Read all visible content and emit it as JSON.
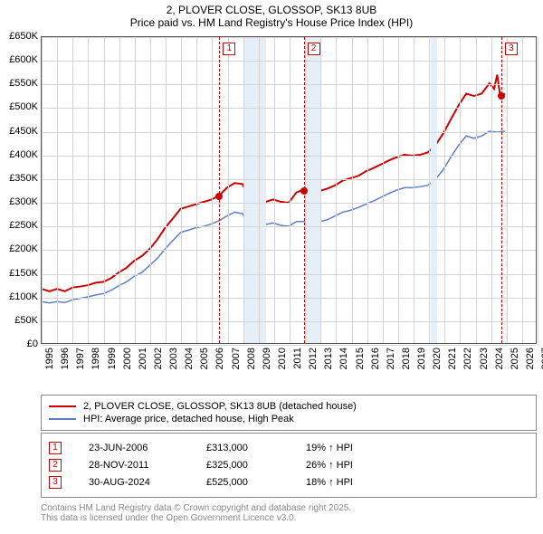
{
  "title_line1": "2, PLOVER CLOSE, GLOSSOP, SK13 8UB",
  "title_line2": "Price paid vs. HM Land Registry's House Price Index (HPI)",
  "chart": {
    "type": "line",
    "xlim": [
      1995,
      2027
    ],
    "ylim": [
      0,
      650000
    ],
    "ytick_step": 50000,
    "ytick_prefix": "£",
    "ytick_suffix": "K",
    "xtick_step": 1,
    "grid_color": "#d3d3d3",
    "minor_grid_color": "#f0f0f0",
    "shaded_recessions": [
      {
        "start": 2008.0,
        "end": 2009.5,
        "color": "#e6eef7"
      },
      {
        "start": 2012.0,
        "end": 2013.0,
        "color": "#e6eef7"
      },
      {
        "start": 2020.1,
        "end": 2020.5,
        "color": "#e6eef7"
      }
    ],
    "series": [
      {
        "name": "2, PLOVER CLOSE, GLOSSOP, SK13 8UB (detached house)",
        "color": "#cc0000",
        "width": 2,
        "data": [
          [
            1995.0,
            115000
          ],
          [
            1995.5,
            110000
          ],
          [
            1996.0,
            115000
          ],
          [
            1996.5,
            110000
          ],
          [
            1997.0,
            118000
          ],
          [
            1997.5,
            120000
          ],
          [
            1998.0,
            123000
          ],
          [
            1998.5,
            128000
          ],
          [
            1999.0,
            130000
          ],
          [
            1999.5,
            138000
          ],
          [
            2000.0,
            150000
          ],
          [
            2000.5,
            160000
          ],
          [
            2001.0,
            175000
          ],
          [
            2001.5,
            185000
          ],
          [
            2002.0,
            200000
          ],
          [
            2002.5,
            220000
          ],
          [
            2003.0,
            245000
          ],
          [
            2003.5,
            265000
          ],
          [
            2004.0,
            285000
          ],
          [
            2004.5,
            290000
          ],
          [
            2005.0,
            295000
          ],
          [
            2005.5,
            300000
          ],
          [
            2006.0,
            305000
          ],
          [
            2006.5,
            313000
          ],
          [
            2007.0,
            330000
          ],
          [
            2007.5,
            340000
          ],
          [
            2008.0,
            338000
          ],
          [
            2008.5,
            305000
          ],
          [
            2009.0,
            280000
          ],
          [
            2009.5,
            300000
          ],
          [
            2010.0,
            305000
          ],
          [
            2010.5,
            300000
          ],
          [
            2011.0,
            298000
          ],
          [
            2011.5,
            320000
          ],
          [
            2011.9,
            325000
          ],
          [
            2012.5,
            325000
          ],
          [
            2013.0,
            323000
          ],
          [
            2013.5,
            328000
          ],
          [
            2014.0,
            335000
          ],
          [
            2014.5,
            345000
          ],
          [
            2015.0,
            350000
          ],
          [
            2015.5,
            355000
          ],
          [
            2016.0,
            365000
          ],
          [
            2016.5,
            372000
          ],
          [
            2017.0,
            380000
          ],
          [
            2017.5,
            388000
          ],
          [
            2018.0,
            395000
          ],
          [
            2018.5,
            400000
          ],
          [
            2019.0,
            398000
          ],
          [
            2019.5,
            400000
          ],
          [
            2020.0,
            405000
          ],
          [
            2020.5,
            420000
          ],
          [
            2021.0,
            445000
          ],
          [
            2021.5,
            475000
          ],
          [
            2022.0,
            505000
          ],
          [
            2022.5,
            530000
          ],
          [
            2023.0,
            525000
          ],
          [
            2023.5,
            530000
          ],
          [
            2024.0,
            552000
          ],
          [
            2024.3,
            540000
          ],
          [
            2024.5,
            570000
          ],
          [
            2024.7,
            525000
          ],
          [
            2025.0,
            530000
          ]
        ]
      },
      {
        "name": "HPI: Average price, detached house, High Peak",
        "color": "#5b7fc7",
        "width": 1.5,
        "data": [
          [
            1995.0,
            88000
          ],
          [
            1995.5,
            85000
          ],
          [
            1996.0,
            88000
          ],
          [
            1996.5,
            86000
          ],
          [
            1997.0,
            92000
          ],
          [
            1997.5,
            95000
          ],
          [
            1998.0,
            98000
          ],
          [
            1998.5,
            102000
          ],
          [
            1999.0,
            105000
          ],
          [
            1999.5,
            112000
          ],
          [
            2000.0,
            122000
          ],
          [
            2000.5,
            130000
          ],
          [
            2001.0,
            142000
          ],
          [
            2001.5,
            150000
          ],
          [
            2002.0,
            165000
          ],
          [
            2002.5,
            180000
          ],
          [
            2003.0,
            200000
          ],
          [
            2003.5,
            218000
          ],
          [
            2004.0,
            235000
          ],
          [
            2004.5,
            240000
          ],
          [
            2005.0,
            245000
          ],
          [
            2005.5,
            248000
          ],
          [
            2006.0,
            253000
          ],
          [
            2006.5,
            260000
          ],
          [
            2007.0,
            270000
          ],
          [
            2007.5,
            278000
          ],
          [
            2008.0,
            275000
          ],
          [
            2008.5,
            250000
          ],
          [
            2009.0,
            237000
          ],
          [
            2009.5,
            252000
          ],
          [
            2010.0,
            255000
          ],
          [
            2010.5,
            250000
          ],
          [
            2011.0,
            248000
          ],
          [
            2011.5,
            258000
          ],
          [
            2011.9,
            258000
          ],
          [
            2012.5,
            257000
          ],
          [
            2013.0,
            258000
          ],
          [
            2013.5,
            262000
          ],
          [
            2014.0,
            270000
          ],
          [
            2014.5,
            278000
          ],
          [
            2015.0,
            282000
          ],
          [
            2015.5,
            288000
          ],
          [
            2016.0,
            295000
          ],
          [
            2016.5,
            302000
          ],
          [
            2017.0,
            310000
          ],
          [
            2017.5,
            318000
          ],
          [
            2018.0,
            325000
          ],
          [
            2018.5,
            330000
          ],
          [
            2019.0,
            330000
          ],
          [
            2019.5,
            332000
          ],
          [
            2020.0,
            335000
          ],
          [
            2020.5,
            348000
          ],
          [
            2021.0,
            368000
          ],
          [
            2021.5,
            395000
          ],
          [
            2022.0,
            420000
          ],
          [
            2022.5,
            440000
          ],
          [
            2023.0,
            435000
          ],
          [
            2023.5,
            440000
          ],
          [
            2024.0,
            450000
          ],
          [
            2024.5,
            448000
          ],
          [
            2025.0,
            450000
          ]
        ]
      }
    ],
    "sale_markers": [
      {
        "n": "1",
        "x": 2006.47,
        "y": 313000,
        "box_y": 40000
      },
      {
        "n": "2",
        "x": 2011.91,
        "y": 325000,
        "box_y": 40000
      },
      {
        "n": "3",
        "x": 2024.66,
        "y": 525000,
        "box_y": 40000
      }
    ]
  },
  "legend": {
    "items": [
      {
        "color": "#cc0000",
        "label": "2, PLOVER CLOSE, GLOSSOP, SK13 8UB (detached house)"
      },
      {
        "color": "#5b7fc7",
        "label": "HPI: Average price, detached house, High Peak"
      }
    ]
  },
  "sales": [
    {
      "n": "1",
      "date": "23-JUN-2006",
      "price": "£313,000",
      "pct": "19% ↑ HPI"
    },
    {
      "n": "2",
      "date": "28-NOV-2011",
      "price": "£325,000",
      "pct": "26% ↑ HPI"
    },
    {
      "n": "3",
      "date": "30-AUG-2024",
      "price": "£525,000",
      "pct": "18% ↑ HPI"
    }
  ],
  "attribution_line1": "Contains HM Land Registry data © Crown copyright and database right 2025.",
  "attribution_line2": "This data is licensed under the Open Government Licence v3.0."
}
